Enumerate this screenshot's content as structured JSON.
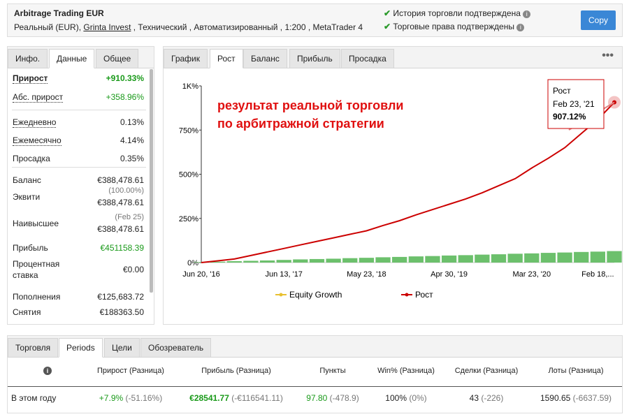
{
  "header": {
    "title": "Arbitrage Trading EUR",
    "subtitle": [
      "Реальный (EUR),",
      "Grinta Invest",
      ", Технический , Автоматизированный , 1:200 , MetaTrader 4"
    ],
    "verifications": [
      "История торговли подтверждена",
      "Торговые права подтверждены"
    ],
    "button": "Copy"
  },
  "stats": {
    "tabs": [
      "Инфо.",
      "Данные",
      "Общее"
    ],
    "rows": [
      {
        "label": "Прирост",
        "value": "+910.33%"
      },
      {
        "label": "Абс. прирост",
        "value": "+358.96%"
      },
      {
        "label": "Ежедневно",
        "value": "0.13%"
      },
      {
        "label": "Ежемесячно",
        "value": "4.14%"
      },
      {
        "label": "Просадка",
        "value": "0.35%"
      },
      {
        "label": "Баланс",
        "value": "€388,478.61"
      },
      {
        "label": "Эквити",
        "note": "(100.00%)",
        "value": "€388,478.61"
      },
      {
        "label": "Наивысшее",
        "note": "(Feb 25)",
        "value": "€388,478.61"
      },
      {
        "label": "Прибыль",
        "value": "€451158.39"
      },
      {
        "label": "Процентная ставка",
        "value": "€0.00"
      },
      {
        "label": "Пополнения",
        "value": "€125,683.72"
      },
      {
        "label": "Снятия",
        "value": "€188363.50"
      }
    ]
  },
  "chart_tabs": [
    "График",
    "Рост",
    "Баланс",
    "Прибыль",
    "Просадка"
  ],
  "chart_data": {
    "type": "line",
    "annotation": [
      "результат реальной торговли",
      "по арбитражной стратегии"
    ],
    "categories": [
      "Jun 20, '16",
      null,
      null,
      null,
      null,
      "Jun 13, '17",
      null,
      null,
      null,
      null,
      "May 23, '18",
      null,
      null,
      null,
      null,
      "Apr 30, '19",
      null,
      null,
      null,
      null,
      "Mar 23, '20",
      null,
      null,
      null,
      "Feb 18,...",
      null
    ],
    "series": [
      {
        "name": "Equity Growth",
        "color": "#e8c030",
        "values": [
          null,
          null,
          null,
          null,
          null,
          null,
          null,
          null,
          null,
          null,
          null,
          null,
          null,
          null,
          null,
          null,
          null,
          null,
          null,
          null,
          null,
          null,
          null,
          null,
          null,
          null
        ]
      },
      {
        "name": "Рост",
        "color": "#cc0000",
        "values": [
          0,
          10,
          20,
          40,
          60,
          80,
          100,
          120,
          140,
          160,
          180,
          210,
          237,
          270,
          300,
          330,
          360,
          395,
          435,
          475,
          535,
          590,
          650,
          730,
          810,
          907.12
        ]
      }
    ],
    "bars": {
      "color": "#6cc06c",
      "values": [
        3,
        5,
        8,
        10,
        12,
        15,
        18,
        20,
        22,
        25,
        27,
        30,
        32,
        35,
        37,
        40,
        42,
        45,
        47,
        50,
        52,
        55,
        57,
        60,
        62,
        65
      ]
    },
    "ylim": [
      0,
      1000
    ],
    "yticks": [
      {
        "value": 0,
        "label": "0%"
      },
      {
        "value": 250,
        "label": "250%"
      },
      {
        "value": 500,
        "label": "500%"
      },
      {
        "value": 750,
        "label": "750%"
      },
      {
        "value": 1000,
        "label": "1K%"
      }
    ],
    "tooltip": {
      "title": "Рост",
      "date": "Feb 23, '21",
      "value": "907.12%"
    }
  },
  "periods": {
    "tabs": [
      "Торговля",
      "Periods",
      "Цели",
      "Обозреватель"
    ],
    "columns": [
      "Прирост (Разница)",
      "Прибыль (Разница)",
      "Пункты",
      "Win% (Разница)",
      "Сделки (Разница)",
      "Лоты (Разница)"
    ],
    "rows": [
      {
        "label": "В этом году",
        "cells": [
          [
            "+7.9%",
            "(-51.16%)"
          ],
          [
            "€28541.77",
            "(-€116541.11)"
          ],
          [
            "97.80",
            "(-478.9)"
          ],
          [
            "100%",
            "(0%)"
          ],
          [
            "43",
            "(-226)"
          ],
          [
            "1590.65",
            "(-6637.59)"
          ]
        ]
      }
    ]
  }
}
